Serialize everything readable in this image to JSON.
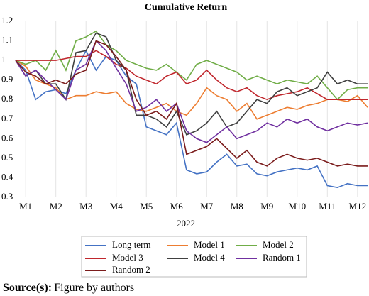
{
  "chart_data": {
    "type": "line",
    "title": "Cumulative Return",
    "x_label": "2022",
    "categories": [
      null,
      "M1",
      null,
      null,
      "M2",
      null,
      null,
      "M3",
      null,
      null,
      "M4",
      null,
      null,
      "M5",
      null,
      null,
      "M6",
      null,
      null,
      "M7",
      null,
      null,
      "M8",
      null,
      null,
      "M9",
      null,
      null,
      "M10",
      null,
      null,
      "M11",
      null,
      null,
      "M12",
      null
    ],
    "series": [
      {
        "name": "Long term",
        "color": "#4472c4",
        "values": [
          1.0,
          0.95,
          0.8,
          0.84,
          0.85,
          0.83,
          0.95,
          1.05,
          0.95,
          1.02,
          1.0,
          0.92,
          0.88,
          0.66,
          0.64,
          0.62,
          0.68,
          0.44,
          0.42,
          0.43,
          0.48,
          0.52,
          0.46,
          0.47,
          0.42,
          0.41,
          0.43,
          0.44,
          0.45,
          0.44,
          0.46,
          0.36,
          0.35,
          0.37,
          0.36,
          0.36
        ]
      },
      {
        "name": "Model 1",
        "color": "#ed7d31",
        "values": [
          1.0,
          0.97,
          0.9,
          0.88,
          0.86,
          0.8,
          0.82,
          0.82,
          0.84,
          0.83,
          0.84,
          0.78,
          0.75,
          0.74,
          0.76,
          0.78,
          0.74,
          0.72,
          0.78,
          0.86,
          0.82,
          0.8,
          0.74,
          0.78,
          0.7,
          0.72,
          0.74,
          0.76,
          0.75,
          0.77,
          0.78,
          0.8,
          0.8,
          0.79,
          0.82,
          0.76
        ]
      },
      {
        "name": "Model 2",
        "color": "#70ad47",
        "values": [
          1.0,
          0.98,
          1.0,
          0.95,
          1.05,
          0.95,
          1.1,
          1.12,
          1.15,
          1.08,
          1.05,
          1.0,
          0.98,
          0.96,
          0.95,
          0.98,
          0.94,
          0.9,
          0.98,
          1.0,
          0.98,
          0.96,
          0.94,
          0.9,
          0.92,
          0.9,
          0.88,
          0.9,
          0.89,
          0.88,
          0.92,
          0.86,
          0.8,
          0.85,
          0.86,
          0.86
        ]
      },
      {
        "name": "Model 3",
        "color": "#c0272d",
        "values": [
          1.0,
          1.0,
          1.0,
          1.0,
          1.0,
          1.01,
          1.02,
          1.02,
          1.05,
          1.02,
          0.98,
          0.96,
          0.92,
          0.9,
          0.88,
          0.92,
          0.94,
          0.88,
          0.9,
          0.95,
          0.9,
          0.86,
          0.84,
          0.86,
          0.82,
          0.8,
          0.82,
          0.83,
          0.84,
          0.86,
          0.83,
          0.8,
          0.8,
          0.8,
          0.8,
          0.8
        ]
      },
      {
        "name": "Model 4",
        "color": "#404040",
        "values": [
          1.0,
          0.92,
          0.95,
          0.88,
          0.88,
          0.8,
          1.04,
          1.05,
          1.14,
          1.12,
          1.0,
          0.95,
          0.72,
          0.72,
          0.7,
          0.66,
          0.74,
          0.62,
          0.64,
          0.68,
          0.74,
          0.66,
          0.68,
          0.74,
          0.8,
          0.78,
          0.84,
          0.86,
          0.82,
          0.84,
          0.86,
          0.94,
          0.88,
          0.9,
          0.88,
          0.88
        ]
      },
      {
        "name": "Random 1",
        "color": "#7030a0",
        "values": [
          1.0,
          0.92,
          0.95,
          0.9,
          0.85,
          0.8,
          0.95,
          0.98,
          1.1,
          1.05,
          0.96,
          0.88,
          0.74,
          0.76,
          0.8,
          0.74,
          0.78,
          0.64,
          0.6,
          0.58,
          0.62,
          0.66,
          0.6,
          0.62,
          0.64,
          0.68,
          0.66,
          0.7,
          0.68,
          0.7,
          0.66,
          0.64,
          0.66,
          0.68,
          0.67,
          0.68
        ]
      },
      {
        "name": "Random 2",
        "color": "#7b1c1c",
        "values": [
          1.0,
          0.94,
          0.92,
          0.88,
          0.9,
          0.88,
          0.93,
          0.95,
          1.1,
          1.08,
          1.02,
          0.95,
          0.8,
          0.72,
          0.74,
          0.7,
          0.78,
          0.52,
          0.54,
          0.56,
          0.6,
          0.55,
          0.5,
          0.54,
          0.48,
          0.46,
          0.5,
          0.52,
          0.5,
          0.49,
          0.5,
          0.48,
          0.46,
          0.47,
          0.46,
          0.46
        ]
      }
    ],
    "ylim": [
      0.3,
      1.2
    ],
    "yticks": [
      0.3,
      0.4,
      0.5,
      0.6,
      0.7,
      0.8,
      0.9,
      1,
      1.1,
      1.2
    ],
    "grid": "x",
    "legend": "bottom"
  },
  "source": {
    "label": "Source(s):",
    "text": "Figure by authors"
  }
}
